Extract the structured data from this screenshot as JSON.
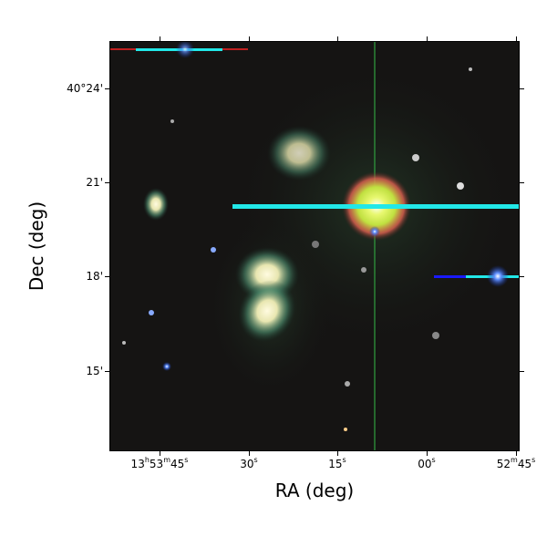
{
  "axes": {
    "xlabel": "RA (deg)",
    "ylabel": "Dec (deg)",
    "x_ticks": [
      {
        "h": "13",
        "hs": "h",
        "m": "53",
        "ms": "m",
        "s": "45",
        "ss": "s"
      },
      {
        "s": "30",
        "ss": "s"
      },
      {
        "s": "15",
        "ss": "s"
      },
      {
        "s": "00",
        "ss": "s"
      },
      {
        "m": "52",
        "ms": "m",
        "s": "45",
        "ss": "s"
      }
    ],
    "y_ticks": [
      "40°24'",
      "21'",
      "18'",
      "15'"
    ]
  },
  "image": {
    "description_colors": {
      "background": "#151413",
      "artifact_cyan": "#22e8e8",
      "artifact_blue": "#1a1aff",
      "bright_star": "#d8f060"
    }
  }
}
